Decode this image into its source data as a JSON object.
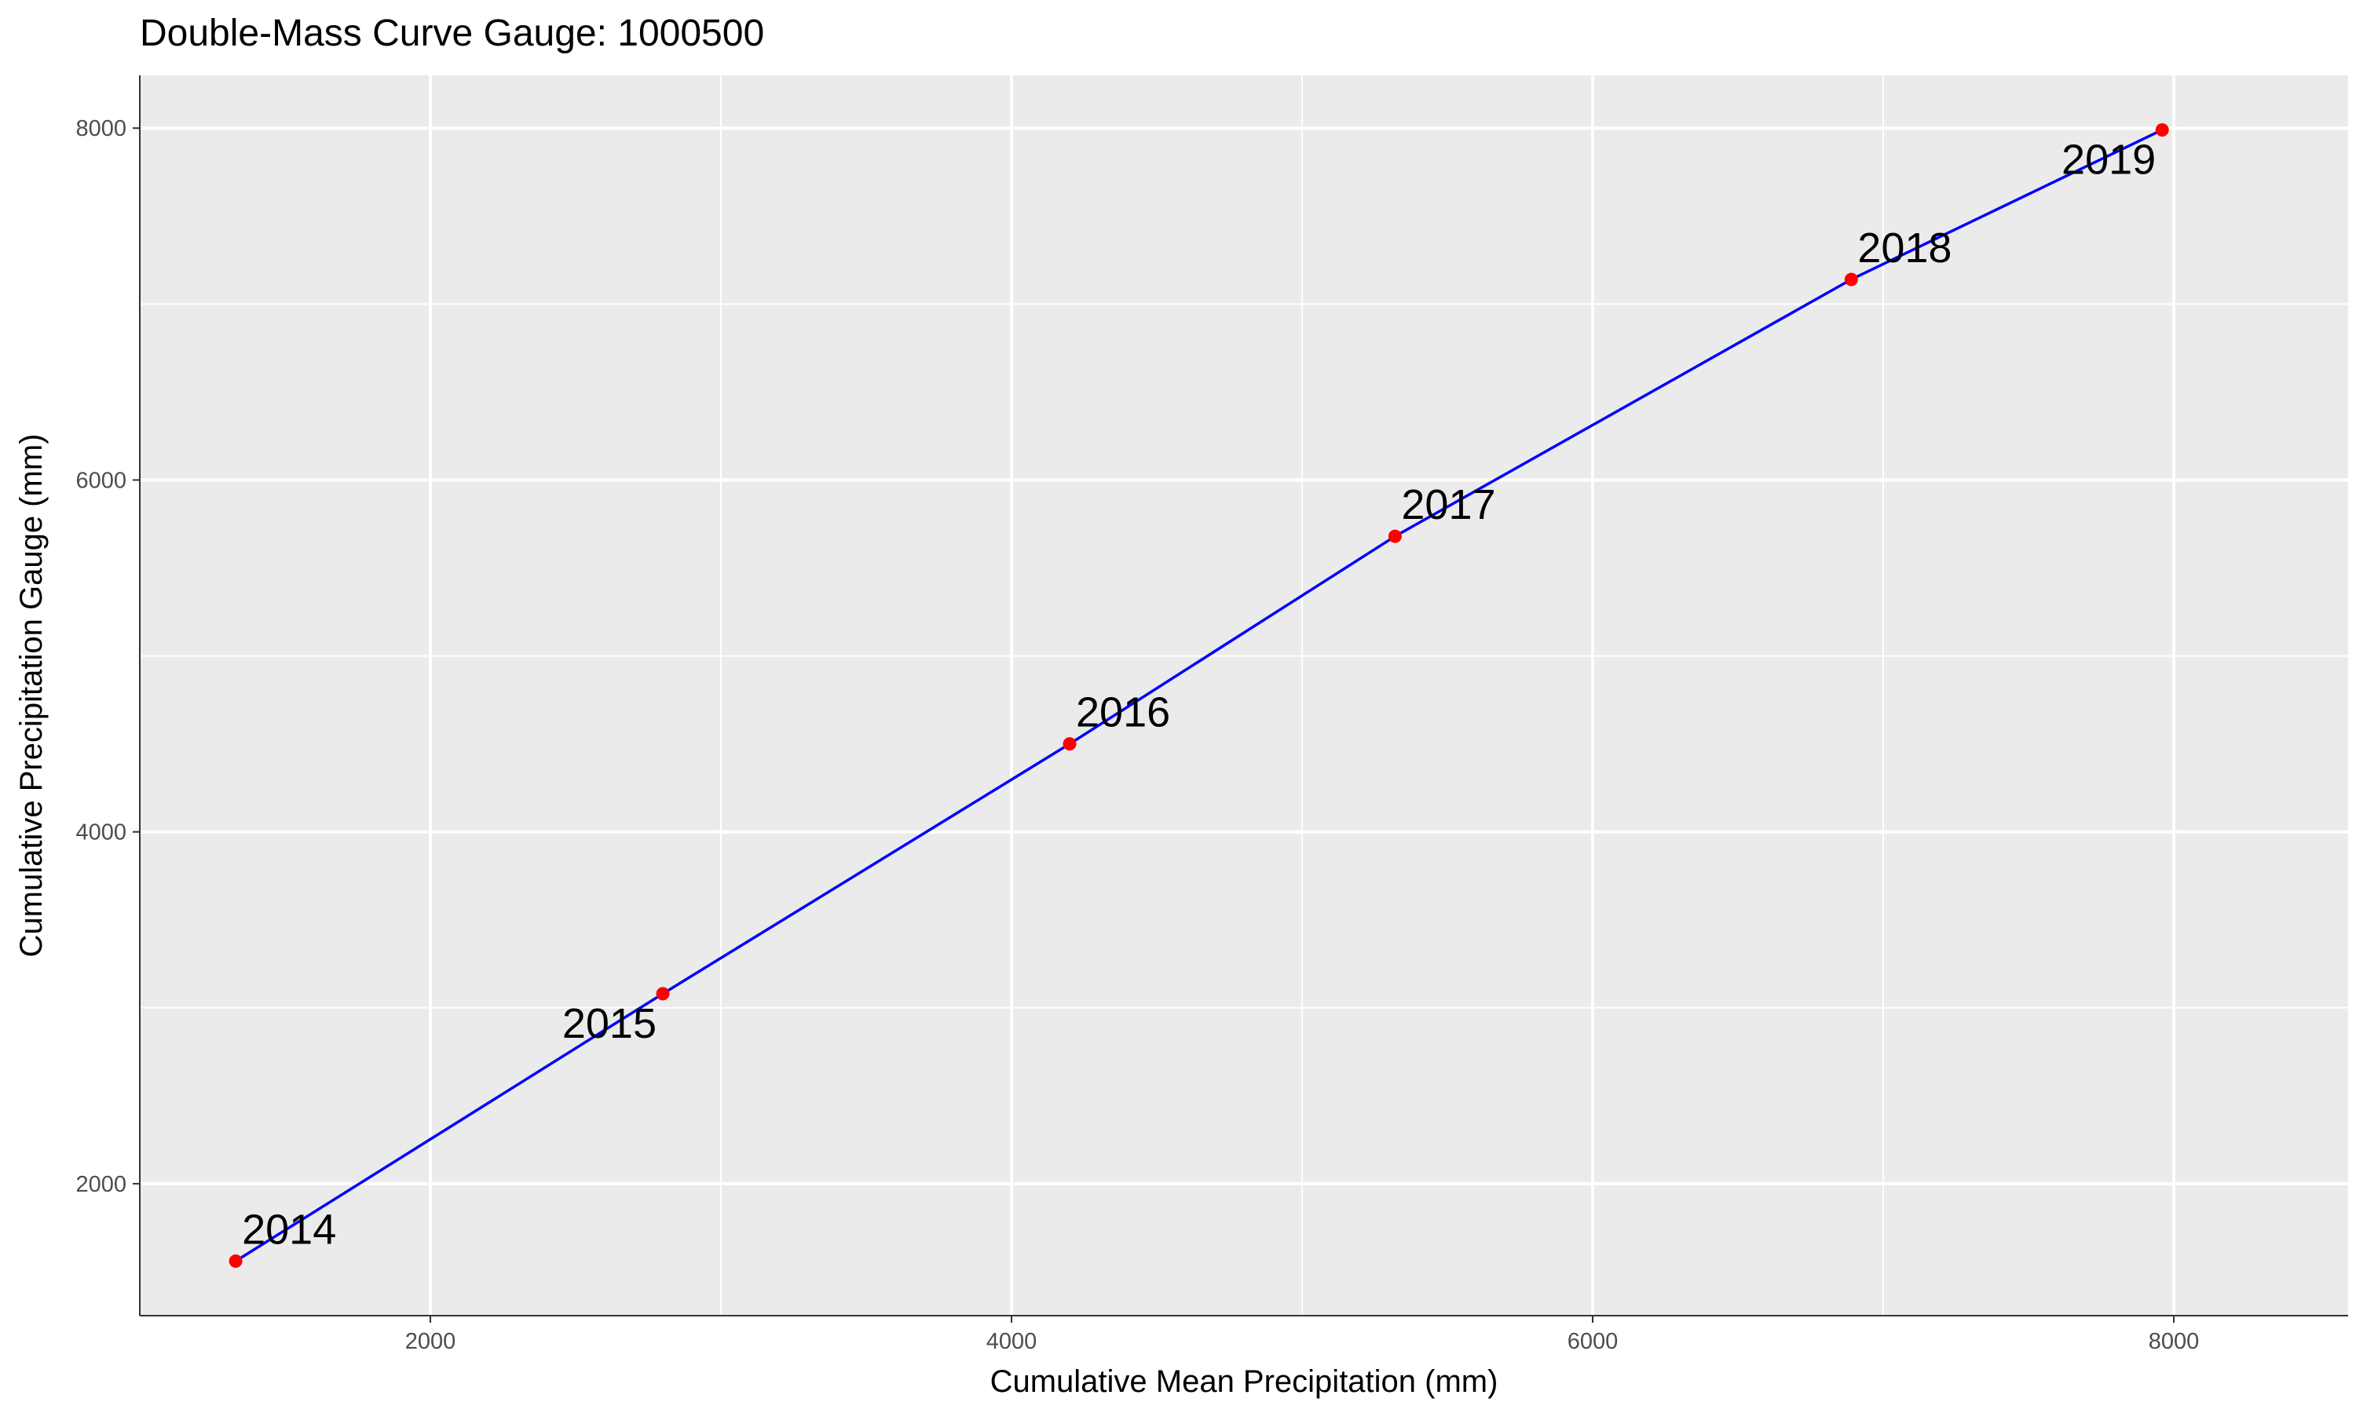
{
  "chart_data": {
    "type": "line",
    "title": "Double-Mass Curve Gauge: 1000500",
    "xlabel": "Cumulative Mean Precipitation (mm)",
    "ylabel": "Cumulative Precipitation Gauge (mm)",
    "xlim": [
      1000,
      8600
    ],
    "ylim": [
      1250,
      8300
    ],
    "x_ticks": [
      2000,
      4000,
      6000,
      8000
    ],
    "y_ticks": [
      2000,
      4000,
      6000,
      8000
    ],
    "grid": true,
    "background": "#ebebeb",
    "line_color": "#0000ff",
    "point_color": "#ff0000",
    "series": [
      {
        "x": [
          1330,
          2800,
          4200,
          5320,
          6890,
          7960
        ],
        "y": [
          1560,
          3080,
          4500,
          5680,
          7140,
          7990
        ],
        "labels": [
          "2014",
          "2015",
          "2016",
          "2017",
          "2018",
          "2019"
        ]
      }
    ]
  }
}
